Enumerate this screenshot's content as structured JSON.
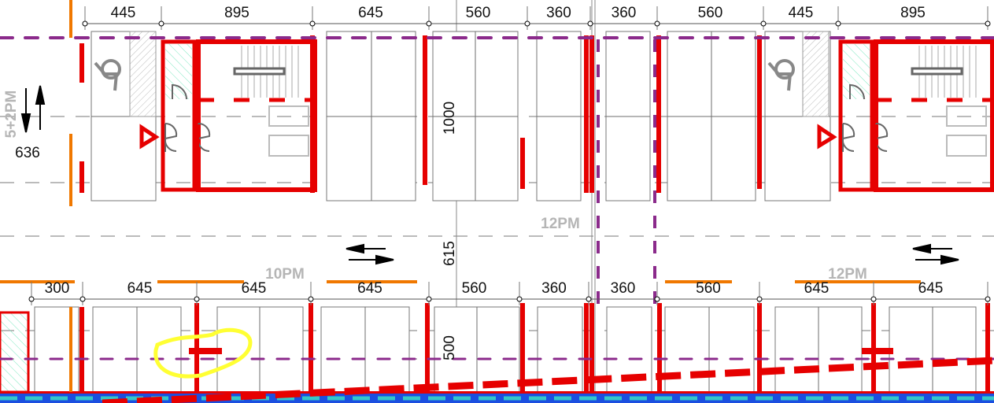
{
  "drawing": {
    "top_dimensions": [
      "445",
      "895",
      "645",
      "560",
      "360",
      "360",
      "560",
      "445",
      "895"
    ],
    "bottom_dimensions": [
      "300",
      "645",
      "645",
      "645",
      "560",
      "360",
      "360",
      "560",
      "645",
      "645"
    ],
    "side_dimension": "636",
    "vertical_dimensions": [
      "1000",
      "615",
      "500"
    ],
    "zone_labels": {
      "left_vertical": "5+2PM",
      "center": "12PM",
      "lower_left": "10PM",
      "lower_right": "12PM"
    },
    "colors": {
      "wall": "#e60000",
      "grid_dashed": "#8b2a8b",
      "boundary": "#f07800",
      "markup_highlight": "#ffff33",
      "edge_strip": "#1b4fe0",
      "edge_dash": "#35c8c8"
    },
    "icons": [
      "wheelchair-icon",
      "stair-icon",
      "door-icon",
      "triangle-warning-icon",
      "direction-arrow-icon"
    ]
  }
}
